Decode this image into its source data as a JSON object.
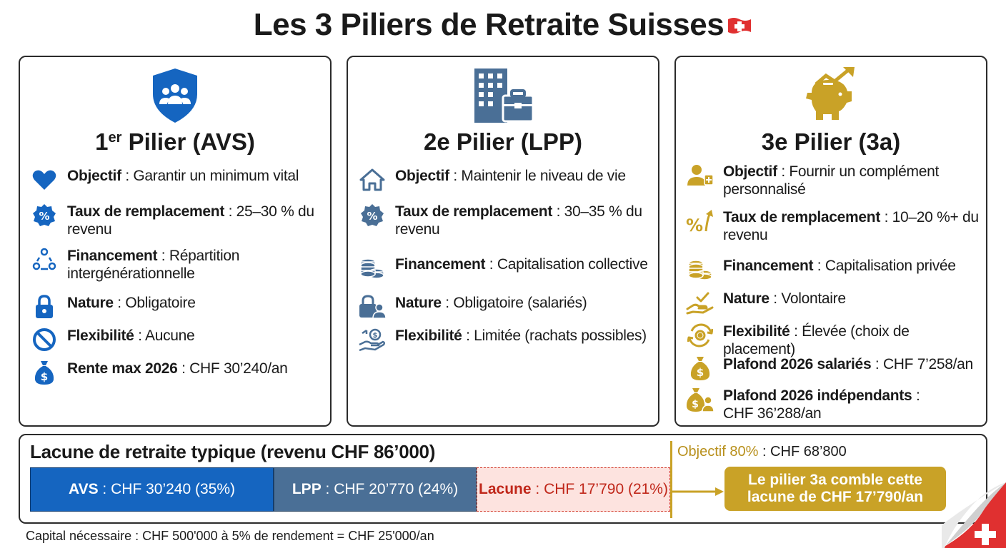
{
  "title": "Les 3 Piliers de Retraite Suisses",
  "colors": {
    "blue": "#1565c0",
    "slate": "#4a6f96",
    "gold": "#c9a227",
    "red": "#d23a2a"
  },
  "pillars": [
    {
      "title_main": "1",
      "title_sup": "er",
      "title_rest": " Pilier (AVS)",
      "icon": "shield-people-icon",
      "items": [
        {
          "icon": "heart-icon",
          "label": "Objectif",
          "sep": " : ",
          "value": "Garantir un minimum vital"
        },
        {
          "icon": "percent-badge-icon",
          "label": "Taux de remplacement",
          "sep": " : ",
          "value": "25–30 % du revenu"
        },
        {
          "icon": "people-cycle-icon",
          "label": "Financement",
          "sep": " : ",
          "value": "Répartition intergénérationnelle"
        },
        {
          "icon": "lock-icon",
          "label": "Nature",
          "sep": " : ",
          "value": "Obligatoire"
        },
        {
          "icon": "forbidden-icon",
          "label": "Flexibilité",
          "sep": " : ",
          "value": "Aucune"
        },
        {
          "icon": "money-bag-icon",
          "label": "Rente max 2026",
          "sep": " : ",
          "value": "CHF 30’240/an"
        }
      ]
    },
    {
      "title_main": "2e Pilier (LPP)",
      "icon": "building-briefcase-icon",
      "items": [
        {
          "icon": "house-icon",
          "label": "Objectif",
          "sep": " : ",
          "value": "Maintenir le niveau de vie"
        },
        {
          "icon": "percent-badge-icon",
          "label": "Taux de remplacement",
          "sep": " : ",
          "value": "30–35 % du revenu"
        },
        {
          "icon": "coin-stack-icon",
          "label": "Financement",
          "sep": " : ",
          "value": "Capitalisation collective"
        },
        {
          "icon": "lock-person-icon",
          "label": "Nature",
          "sep": " : ",
          "value": "Obligatoire (salariés)"
        },
        {
          "icon": "hand-money-icon",
          "label": "Flexibilité",
          "sep": " : ",
          "value": "Limitée (rachats possibles)"
        }
      ]
    },
    {
      "title_main": "3e Pilier (3a)",
      "icon": "piggy-bank-growth-icon",
      "items": [
        {
          "icon": "person-plus-icon",
          "label": "Objectif",
          "sep": " : ",
          "value": "Fournir un complément personnalisé"
        },
        {
          "icon": "percent-arrow-icon",
          "label": "Taux de remplacement",
          "sep": " : ",
          "value": "10–20 %+ du revenu"
        },
        {
          "icon": "coin-stack-icon",
          "label": "Financement",
          "sep": " : ",
          "value": "Capitalisation privée"
        },
        {
          "icon": "hand-check-icon",
          "label": "Nature",
          "sep": " : ",
          "value": "Volontaire"
        },
        {
          "icon": "gear-cycle-icon",
          "label": "Flexibilité",
          "sep": " : ",
          "value": "Élevée (choix de placement)"
        },
        {
          "icon": "money-bag-icon",
          "label": "Plafond 2026 salariés",
          "sep": " : ",
          "value": "CHF 7’258/an"
        },
        {
          "icon": "money-bag-person-icon",
          "label": "Plafond 2026 indépendants",
          "sep": " : ",
          "value": "CHF 36’288/an"
        }
      ]
    }
  ],
  "gap": {
    "title": "Lacune de retraite typique (revenu CHF 86’000)",
    "segments": [
      {
        "label": "AVS",
        "sep": " : ",
        "value": "CHF 30’240 (35%)"
      },
      {
        "label": "LPP",
        "sep": " : ",
        "value": "CHF 20’770 (24%)"
      },
      {
        "label": "Lacune",
        "sep": " : ",
        "value": "CHF 17’790 (21%)"
      }
    ],
    "objective_label": "Objectif 80%",
    "objective_value": " : CHF 68’800",
    "fill_line1": "Le pilier 3a comble cette",
    "fill_line2": "lacune de CHF 17’790/an"
  },
  "footnote": "Capital nécessaire : CHF 500'000 à 5% de rendement = CHF 25'000/an"
}
